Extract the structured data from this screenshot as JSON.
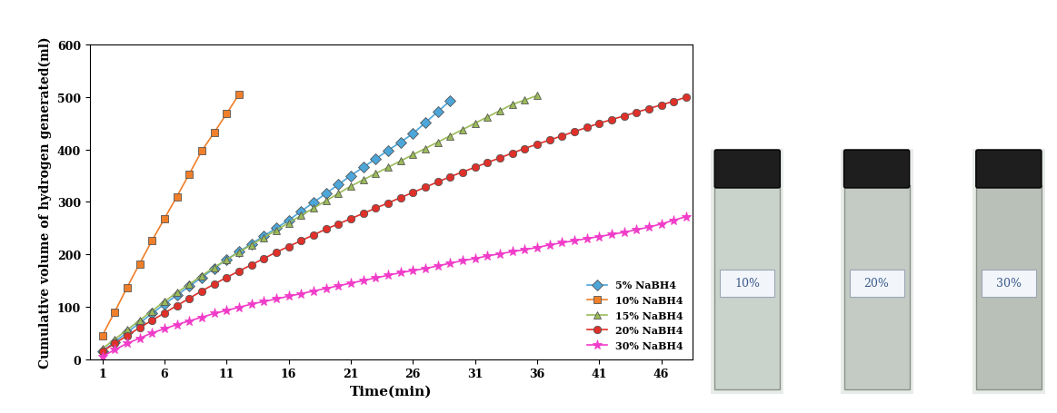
{
  "chart_data": {
    "type": "line",
    "x_label": "Time(min)",
    "y_label": "Cumulative volume of hydrogen generated(ml)",
    "x": [
      1,
      2,
      3,
      4,
      5,
      6,
      7,
      8,
      9,
      10,
      11,
      12,
      13,
      14,
      15,
      16,
      17,
      18,
      19,
      20,
      21,
      22,
      23,
      24,
      25,
      26,
      27,
      28,
      29,
      30,
      31,
      32,
      33,
      34,
      35,
      36,
      37,
      38,
      39,
      40,
      41,
      42,
      43,
      44,
      45,
      46,
      47,
      48
    ],
    "series": [
      {
        "name": "5% NaBH4",
        "color": "#4da6d9",
        "marker": "diamond",
        "values": [
          15,
          33,
          51,
          69,
          87,
          105,
          122,
          139,
          156,
          173,
          190,
          205,
          220,
          235,
          250,
          265,
          282,
          299,
          316,
          333,
          350,
          366,
          382,
          398,
          414,
          430,
          451,
          472,
          493,
          null,
          null,
          null,
          null,
          null,
          null,
          null,
          null,
          null,
          null,
          null,
          null,
          null,
          null,
          null,
          null,
          null,
          null,
          null
        ]
      },
      {
        "name": "10% NaBH4",
        "color": "#f07f2a",
        "marker": "square",
        "values": [
          45,
          90,
          137,
          182,
          226,
          268,
          310,
          353,
          397,
          432,
          468,
          505,
          null,
          null,
          null,
          null,
          null,
          null,
          null,
          null,
          null,
          null,
          null,
          null,
          null,
          null,
          null,
          null,
          null,
          null,
          null,
          null,
          null,
          null,
          null,
          null,
          null,
          null,
          null,
          null,
          null,
          null,
          null,
          null,
          null,
          null,
          null,
          null
        ]
      },
      {
        "name": "15% NaBH4",
        "color": "#9bbb59",
        "marker": "triangle",
        "values": [
          20,
          38,
          56,
          74,
          92,
          110,
          127,
          143,
          159,
          175,
          190,
          204,
          218,
          232,
          246,
          260,
          274,
          288,
          302,
          316,
          330,
          342,
          354,
          366,
          378,
          390,
          402,
          414,
          426,
          438,
          450,
          462,
          474,
          486,
          494,
          503,
          null,
          null,
          null,
          null,
          null,
          null,
          null,
          null,
          null,
          null,
          null,
          null
        ]
      },
      {
        "name": "20% NaBH4",
        "color": "#e0302a",
        "marker": "circle",
        "values": [
          15,
          30,
          45,
          60,
          74,
          88,
          102,
          116,
          130,
          143,
          156,
          168,
          180,
          192,
          204,
          215,
          226,
          237,
          248,
          258,
          268,
          278,
          288,
          298,
          308,
          318,
          328,
          338,
          348,
          357,
          366,
          375,
          384,
          393,
          402,
          410,
          418,
          426,
          434,
          442,
          450,
          457,
          464,
          471,
          478,
          485,
          492,
          500
        ]
      },
      {
        "name": "30% NaBH4",
        "color": "#f03cc8",
        "marker": "star",
        "values": [
          5,
          18,
          30,
          40,
          50,
          58,
          66,
          73,
          80,
          87,
          93,
          99,
          105,
          110,
          115,
          120,
          125,
          130,
          135,
          140,
          145,
          150,
          155,
          160,
          165,
          169,
          173,
          178,
          183,
          188,
          192,
          197,
          201,
          205,
          209,
          213,
          218,
          222,
          226,
          230,
          234,
          238,
          242,
          247,
          252,
          258,
          265,
          272
        ]
      }
    ],
    "xlim": [
      0,
      48.5
    ],
    "xticks": [
      1,
      6,
      11,
      16,
      21,
      26,
      31,
      36,
      41,
      46
    ],
    "ylim": [
      0,
      600
    ],
    "yticks": [
      0,
      100,
      200,
      300,
      400,
      500,
      600
    ],
    "grid": false,
    "legend": "lower right"
  },
  "photo_labels": [
    "10%",
    "20%",
    "30%"
  ]
}
